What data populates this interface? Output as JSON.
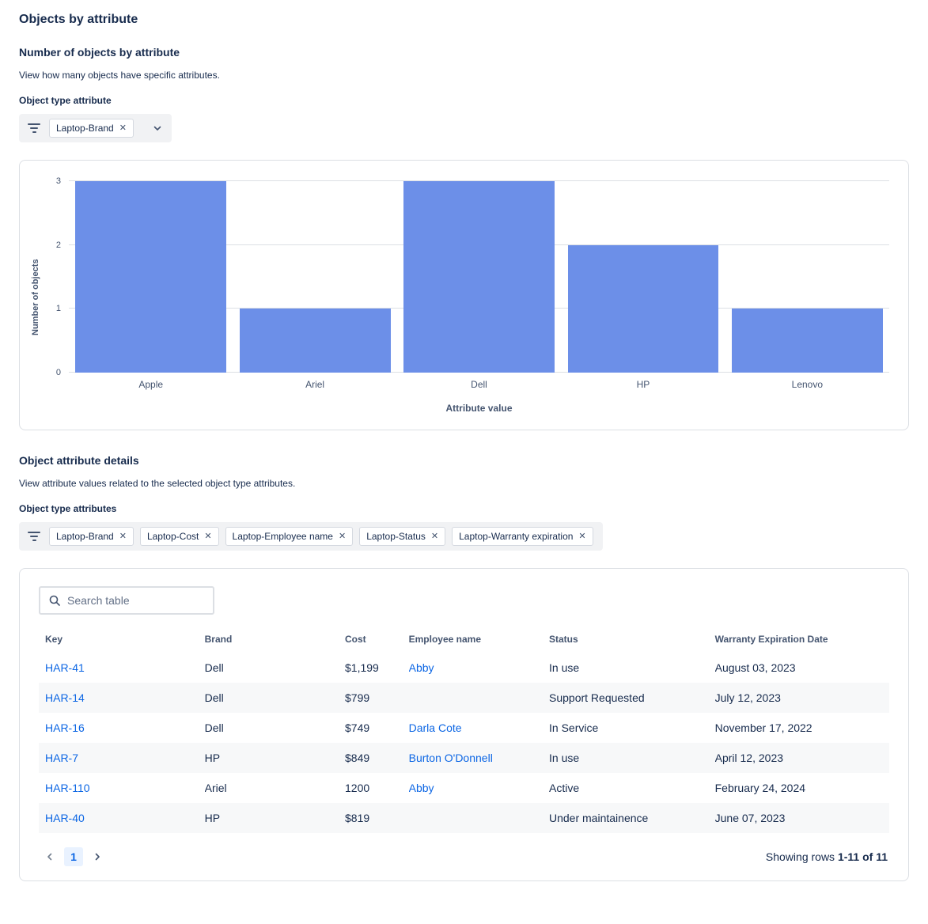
{
  "page": {
    "title": "Objects by attribute"
  },
  "chart_section": {
    "heading": "Number of objects by attribute",
    "description": "View how many objects have specific attributes.",
    "filter_label": "Object type attribute",
    "filter_chips": [
      {
        "label": "Laptop-Brand"
      }
    ]
  },
  "chart_data": {
    "type": "bar",
    "categories": [
      "Apple",
      "Ariel",
      "Dell",
      "HP",
      "Lenovo"
    ],
    "values": [
      3,
      1,
      3,
      2,
      1
    ],
    "title": "",
    "xlabel": "Attribute value",
    "ylabel": "Number of objects",
    "ylim": [
      0,
      3
    ],
    "yticks": [
      0,
      1,
      2,
      3
    ],
    "bar_color": "#6C8FE8",
    "grid": "horizontal",
    "legend": "none"
  },
  "details_section": {
    "heading": "Object attribute details",
    "description": "View attribute values related to the selected object type attributes.",
    "filter_label": "Object type attributes",
    "filter_chips": [
      {
        "label": "Laptop-Brand"
      },
      {
        "label": "Laptop-Cost"
      },
      {
        "label": "Laptop-Employee name"
      },
      {
        "label": "Laptop-Status"
      },
      {
        "label": "Laptop-Warranty expiration"
      }
    ]
  },
  "table": {
    "search_placeholder": "Search table",
    "columns": [
      "Key",
      "Brand",
      "Cost",
      "Employee name",
      "Status",
      "Warranty Expiration Date"
    ],
    "rows": [
      {
        "cells": [
          {
            "text": "HAR-41",
            "link": true
          },
          {
            "text": "Dell"
          },
          {
            "text": "$1,199"
          },
          {
            "text": "Abby",
            "link": true
          },
          {
            "text": "In use"
          },
          {
            "text": "August 03, 2023"
          }
        ]
      },
      {
        "cells": [
          {
            "text": "HAR-14",
            "link": true
          },
          {
            "text": "Dell"
          },
          {
            "text": "$799"
          },
          {
            "text": ""
          },
          {
            "text": "Support Requested"
          },
          {
            "text": "July 12, 2023"
          }
        ]
      },
      {
        "cells": [
          {
            "text": "HAR-16",
            "link": true
          },
          {
            "text": "Dell"
          },
          {
            "text": "$749"
          },
          {
            "text": "Darla Cote",
            "link": true
          },
          {
            "text": "In Service"
          },
          {
            "text": "November 17, 2022"
          }
        ]
      },
      {
        "cells": [
          {
            "text": "HAR-7",
            "link": true
          },
          {
            "text": "HP"
          },
          {
            "text": "$849"
          },
          {
            "text": "Burton O'Donnell",
            "link": true
          },
          {
            "text": "In use"
          },
          {
            "text": "April 12, 2023"
          }
        ]
      },
      {
        "cells": [
          {
            "text": "HAR-110",
            "link": true
          },
          {
            "text": "Ariel"
          },
          {
            "text": "1200"
          },
          {
            "text": "Abby",
            "link": true
          },
          {
            "text": "Active"
          },
          {
            "text": "February 24, 2024"
          }
        ]
      },
      {
        "cells": [
          {
            "text": "HAR-40",
            "link": true
          },
          {
            "text": "HP"
          },
          {
            "text": "$819"
          },
          {
            "text": ""
          },
          {
            "text": "Under maintainence"
          },
          {
            "text": "June 07, 2023"
          }
        ]
      }
    ],
    "pagination": {
      "current_page": "1",
      "summary_prefix": "Showing rows",
      "summary_range": "1-11 of 11"
    }
  }
}
